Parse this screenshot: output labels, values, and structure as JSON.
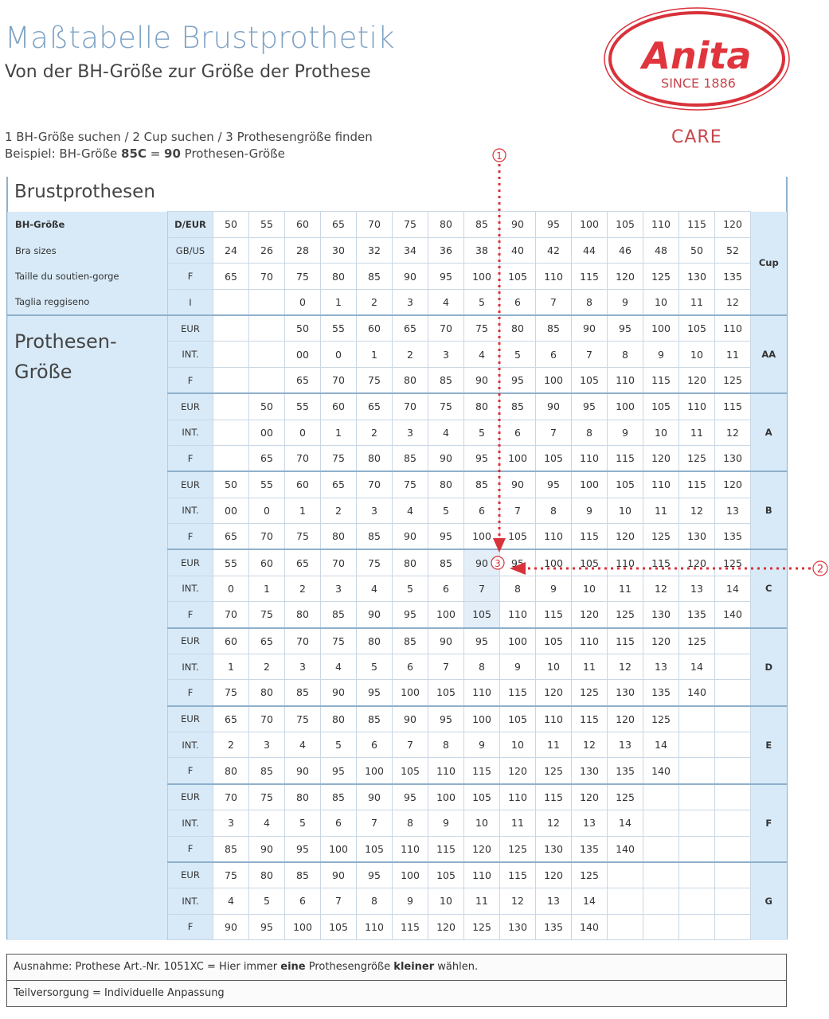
{
  "header": {
    "title": "Maßtabelle Brustprothetik",
    "subtitle": "Von der BH-Größe zur Größe der Prothese"
  },
  "instructions": {
    "line1": "1  BH-Größe suchen /  2  Cup suchen   /  3  Prothesengröße finden",
    "example_prefix": "Beispiel:  BH-Größe ",
    "example_size": "85C",
    "example_eq": " = ",
    "example_result": "90",
    "example_suffix": " Prothesen-Größe"
  },
  "logo": {
    "brand": "Anita",
    "since": "SINCE 1886",
    "line": "CARE",
    "color": "#d8323b"
  },
  "section_title": "Brustprothesen",
  "prosthesis_title_1": "Prothesen-",
  "prosthesis_title_2": "Größe",
  "markers": {
    "step1": "①",
    "step2": "②",
    "step3": "③",
    "color": "#d8323b"
  },
  "bra_rows": [
    {
      "label": "BH-Größe",
      "unit": "D/EUR",
      "values": [
        "50",
        "55",
        "60",
        "65",
        "70",
        "75",
        "80",
        "85",
        "90",
        "95",
        "100",
        "105",
        "110",
        "115",
        "120"
      ]
    },
    {
      "label": "Bra sizes",
      "unit": "GB/US",
      "values": [
        "24",
        "26",
        "28",
        "30",
        "32",
        "34",
        "36",
        "38",
        "40",
        "42",
        "44",
        "46",
        "48",
        "50",
        "52"
      ]
    },
    {
      "label": "Taille du soutien-gorge",
      "unit": "F",
      "values": [
        "65",
        "70",
        "75",
        "80",
        "85",
        "90",
        "95",
        "100",
        "105",
        "110",
        "115",
        "120",
        "125",
        "130",
        "135"
      ]
    },
    {
      "label": "Taglia reggiseno",
      "unit": "I",
      "values": [
        "",
        "",
        "0",
        "1",
        "2",
        "3",
        "4",
        "5",
        "6",
        "7",
        "8",
        "9",
        "10",
        "11",
        "12"
      ]
    }
  ],
  "cup_header": "Cup",
  "cups": [
    {
      "cup": "AA",
      "rows": [
        {
          "unit": "EUR",
          "values": [
            "",
            "",
            "50",
            "55",
            "60",
            "65",
            "70",
            "75",
            "80",
            "85",
            "90",
            "95",
            "100",
            "105",
            "110"
          ]
        },
        {
          "unit": "INT.",
          "values": [
            "",
            "",
            "00",
            "0",
            "1",
            "2",
            "3",
            "4",
            "5",
            "6",
            "7",
            "8",
            "9",
            "10",
            "11"
          ]
        },
        {
          "unit": "F",
          "values": [
            "",
            "",
            "65",
            "70",
            "75",
            "80",
            "85",
            "90",
            "95",
            "100",
            "105",
            "110",
            "115",
            "120",
            "125"
          ]
        }
      ]
    },
    {
      "cup": "A",
      "rows": [
        {
          "unit": "EUR",
          "values": [
            "",
            "50",
            "55",
            "60",
            "65",
            "70",
            "75",
            "80",
            "85",
            "90",
            "95",
            "100",
            "105",
            "110",
            "115"
          ]
        },
        {
          "unit": "INT.",
          "values": [
            "",
            "00",
            "0",
            "1",
            "2",
            "3",
            "4",
            "5",
            "6",
            "7",
            "8",
            "9",
            "10",
            "11",
            "12"
          ]
        },
        {
          "unit": "F",
          "values": [
            "",
            "65",
            "70",
            "75",
            "80",
            "85",
            "90",
            "95",
            "100",
            "105",
            "110",
            "115",
            "120",
            "125",
            "130"
          ]
        }
      ]
    },
    {
      "cup": "B",
      "rows": [
        {
          "unit": "EUR",
          "values": [
            "50",
            "55",
            "60",
            "65",
            "70",
            "75",
            "80",
            "85",
            "90",
            "95",
            "100",
            "105",
            "110",
            "115",
            "120"
          ]
        },
        {
          "unit": "INT.",
          "values": [
            "00",
            "0",
            "1",
            "2",
            "3",
            "4",
            "5",
            "6",
            "7",
            "8",
            "9",
            "10",
            "11",
            "12",
            "13"
          ]
        },
        {
          "unit": "F",
          "values": [
            "65",
            "70",
            "75",
            "80",
            "85",
            "90",
            "95",
            "100",
            "105",
            "110",
            "115",
            "120",
            "125",
            "130",
            "135"
          ]
        }
      ]
    },
    {
      "cup": "C",
      "rows": [
        {
          "unit": "EUR",
          "values": [
            "55",
            "60",
            "65",
            "70",
            "75",
            "80",
            "85",
            "90",
            "95",
            "100",
            "105",
            "110",
            "115",
            "120",
            "125"
          ]
        },
        {
          "unit": "INT.",
          "values": [
            "0",
            "1",
            "2",
            "3",
            "4",
            "5",
            "6",
            "7",
            "8",
            "9",
            "10",
            "11",
            "12",
            "13",
            "14"
          ]
        },
        {
          "unit": "F",
          "values": [
            "70",
            "75",
            "80",
            "85",
            "90",
            "95",
            "100",
            "105",
            "110",
            "115",
            "120",
            "125",
            "130",
            "135",
            "140"
          ]
        }
      ]
    },
    {
      "cup": "D",
      "rows": [
        {
          "unit": "EUR",
          "values": [
            "60",
            "65",
            "70",
            "75",
            "80",
            "85",
            "90",
            "95",
            "100",
            "105",
            "110",
            "115",
            "120",
            "125",
            ""
          ]
        },
        {
          "unit": "INT.",
          "values": [
            "1",
            "2",
            "3",
            "4",
            "5",
            "6",
            "7",
            "8",
            "9",
            "10",
            "11",
            "12",
            "13",
            "14",
            ""
          ]
        },
        {
          "unit": "F",
          "values": [
            "75",
            "80",
            "85",
            "90",
            "95",
            "100",
            "105",
            "110",
            "115",
            "120",
            "125",
            "130",
            "135",
            "140",
            ""
          ]
        }
      ]
    },
    {
      "cup": "E",
      "rows": [
        {
          "unit": "EUR",
          "values": [
            "65",
            "70",
            "75",
            "80",
            "85",
            "90",
            "95",
            "100",
            "105",
            "110",
            "115",
            "120",
            "125",
            "",
            ""
          ]
        },
        {
          "unit": "INT.",
          "values": [
            "2",
            "3",
            "4",
            "5",
            "6",
            "7",
            "8",
            "9",
            "10",
            "11",
            "12",
            "13",
            "14",
            "",
            ""
          ]
        },
        {
          "unit": "F",
          "values": [
            "80",
            "85",
            "90",
            "95",
            "100",
            "105",
            "110",
            "115",
            "120",
            "125",
            "130",
            "135",
            "140",
            "",
            ""
          ]
        }
      ]
    },
    {
      "cup": "F",
      "rows": [
        {
          "unit": "EUR",
          "values": [
            "70",
            "75",
            "80",
            "85",
            "90",
            "95",
            "100",
            "105",
            "110",
            "115",
            "120",
            "125",
            "",
            "",
            ""
          ]
        },
        {
          "unit": "INT.",
          "values": [
            "3",
            "4",
            "5",
            "6",
            "7",
            "8",
            "9",
            "10",
            "11",
            "12",
            "13",
            "14",
            "",
            "",
            ""
          ]
        },
        {
          "unit": "F",
          "values": [
            "85",
            "90",
            "95",
            "100",
            "105",
            "110",
            "115",
            "120",
            "125",
            "130",
            "135",
            "140",
            "",
            "",
            ""
          ]
        }
      ]
    },
    {
      "cup": "G",
      "rows": [
        {
          "unit": "EUR",
          "values": [
            "75",
            "80",
            "85",
            "90",
            "95",
            "100",
            "105",
            "110",
            "115",
            "120",
            "125",
            "",
            "",
            "",
            ""
          ]
        },
        {
          "unit": "INT.",
          "values": [
            "4",
            "5",
            "6",
            "7",
            "8",
            "9",
            "10",
            "11",
            "12",
            "13",
            "14",
            "",
            "",
            "",
            ""
          ]
        },
        {
          "unit": "F",
          "values": [
            "90",
            "95",
            "100",
            "105",
            "110",
            "115",
            "120",
            "125",
            "130",
            "135",
            "140",
            "",
            "",
            "",
            ""
          ]
        }
      ]
    }
  ],
  "notes": {
    "exception_a": "Ausnahme: Prothese Art.-Nr. 1051XC = Hier immer ",
    "exception_b": "eine",
    "exception_c": " Prothesengröße ",
    "exception_d": "kleiner",
    "exception_e": " wählen.",
    "partial": "Teilversorgung = Individuelle Anpassung"
  }
}
